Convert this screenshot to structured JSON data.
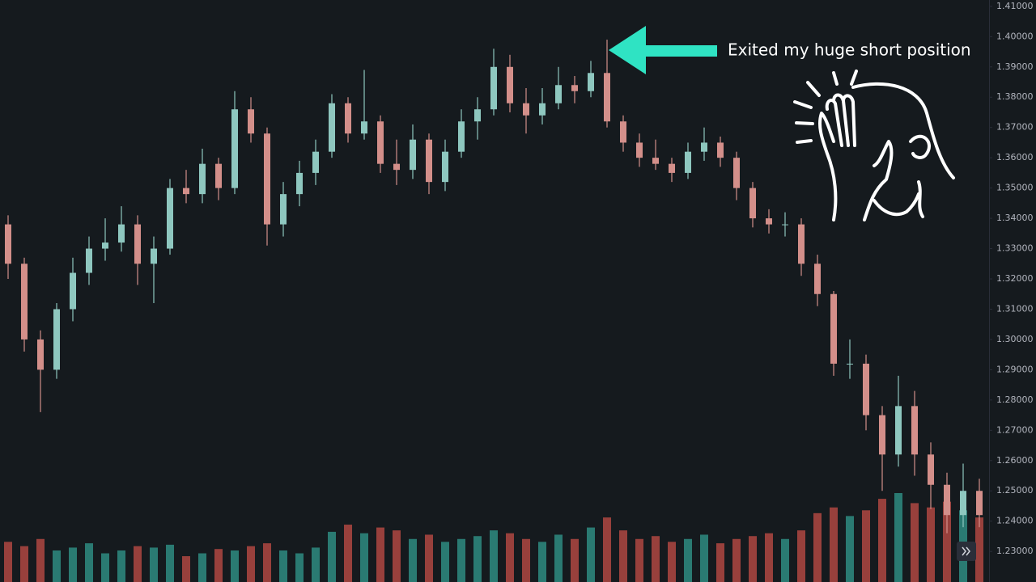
{
  "chart_data": {
    "type": "candlestick",
    "annotation": "Exited my huge short position",
    "up_color": "#8ec7bf",
    "down_color": "#d38f8a",
    "volume_up_color": "#2a7a72",
    "volume_down_color": "#98403c",
    "ylim": [
      1.2199,
      1.4121
    ],
    "yticks": [
      {
        "value": 1.41,
        "label": "1.41000"
      },
      {
        "value": 1.4,
        "label": "1.40000"
      },
      {
        "value": 1.39,
        "label": "1.39000"
      },
      {
        "value": 1.38,
        "label": "1.38000"
      },
      {
        "value": 1.37,
        "label": "1.37000"
      },
      {
        "value": 1.36,
        "label": "1.36000"
      },
      {
        "value": 1.35,
        "label": "1.35000"
      },
      {
        "value": 1.34,
        "label": "1.34000"
      },
      {
        "value": 1.33,
        "label": "1.33000"
      },
      {
        "value": 1.32,
        "label": "1.32000"
      },
      {
        "value": 1.31,
        "label": "1.31000"
      },
      {
        "value": 1.3,
        "label": "1.30000"
      },
      {
        "value": 1.29,
        "label": "1.29000"
      },
      {
        "value": 1.28,
        "label": "1.28000"
      },
      {
        "value": 1.27,
        "label": "1.27000"
      },
      {
        "value": 1.26,
        "label": "1.26000"
      },
      {
        "value": 1.25,
        "label": "1.25000"
      },
      {
        "value": 1.24,
        "label": "1.24000"
      },
      {
        "value": 1.23,
        "label": "1.23000"
      }
    ],
    "open": [
      1.338,
      1.325,
      1.3,
      1.29,
      1.31,
      1.322,
      1.33,
      1.332,
      1.338,
      1.325,
      1.33,
      1.35,
      1.348,
      1.358,
      1.35,
      1.376,
      1.368,
      1.338,
      1.348,
      1.355,
      1.362,
      1.378,
      1.368,
      1.372,
      1.358,
      1.356,
      1.366,
      1.352,
      1.362,
      1.372,
      1.376,
      1.39,
      1.378,
      1.374,
      1.378,
      1.384,
      1.382,
      1.388,
      1.372,
      1.365,
      1.36,
      1.358,
      1.355,
      1.362,
      1.365,
      1.36,
      1.35,
      1.34,
      1.338,
      1.338,
      1.325,
      1.315,
      1.292,
      1.292,
      1.275,
      1.262,
      1.278,
      1.262,
      1.252,
      1.242,
      1.25
    ],
    "high": [
      1.341,
      1.327,
      1.303,
      1.312,
      1.327,
      1.334,
      1.34,
      1.344,
      1.341,
      1.334,
      1.353,
      1.356,
      1.363,
      1.36,
      1.382,
      1.38,
      1.37,
      1.352,
      1.359,
      1.366,
      1.381,
      1.38,
      1.389,
      1.374,
      1.366,
      1.371,
      1.368,
      1.366,
      1.376,
      1.38,
      1.396,
      1.394,
      1.383,
      1.383,
      1.39,
      1.387,
      1.392,
      1.399,
      1.374,
      1.368,
      1.366,
      1.36,
      1.365,
      1.37,
      1.367,
      1.362,
      1.352,
      1.343,
      1.342,
      1.34,
      1.328,
      1.316,
      1.3,
      1.295,
      1.278,
      1.288,
      1.283,
      1.266,
      1.256,
      1.259,
      1.254
    ],
    "low": [
      1.32,
      1.296,
      1.276,
      1.287,
      1.306,
      1.318,
      1.326,
      1.329,
      1.318,
      1.312,
      1.328,
      1.345,
      1.345,
      1.346,
      1.348,
      1.365,
      1.331,
      1.334,
      1.344,
      1.351,
      1.36,
      1.365,
      1.366,
      1.355,
      1.351,
      1.353,
      1.348,
      1.349,
      1.36,
      1.366,
      1.374,
      1.375,
      1.368,
      1.371,
      1.376,
      1.378,
      1.38,
      1.37,
      1.362,
      1.357,
      1.356,
      1.352,
      1.353,
      1.359,
      1.357,
      1.346,
      1.337,
      1.335,
      1.334,
      1.321,
      1.311,
      1.288,
      1.287,
      1.27,
      1.25,
      1.258,
      1.255,
      1.244,
      1.236,
      1.238,
      1.238
    ],
    "close": [
      1.325,
      1.3,
      1.29,
      1.31,
      1.322,
      1.33,
      1.332,
      1.338,
      1.325,
      1.33,
      1.35,
      1.348,
      1.358,
      1.35,
      1.376,
      1.368,
      1.338,
      1.348,
      1.355,
      1.362,
      1.378,
      1.368,
      1.372,
      1.358,
      1.356,
      1.366,
      1.352,
      1.362,
      1.372,
      1.376,
      1.39,
      1.378,
      1.374,
      1.378,
      1.384,
      1.382,
      1.388,
      1.372,
      1.365,
      1.36,
      1.358,
      1.355,
      1.362,
      1.365,
      1.36,
      1.35,
      1.34,
      1.338,
      1.338,
      1.325,
      1.315,
      1.292,
      1.292,
      1.275,
      1.262,
      1.278,
      1.262,
      1.252,
      1.242,
      1.25,
      1.242
    ],
    "volume": [
      28,
      25,
      30,
      22,
      24,
      27,
      20,
      22,
      25,
      24,
      26,
      18,
      20,
      23,
      22,
      25,
      27,
      22,
      20,
      24,
      35,
      40,
      34,
      38,
      36,
      30,
      33,
      28,
      30,
      32,
      36,
      34,
      30,
      28,
      33,
      30,
      38,
      45,
      36,
      30,
      32,
      28,
      30,
      33,
      27,
      30,
      32,
      34,
      30,
      36,
      48,
      52,
      46,
      50,
      58,
      62,
      55,
      52,
      56,
      50,
      45
    ]
  }
}
